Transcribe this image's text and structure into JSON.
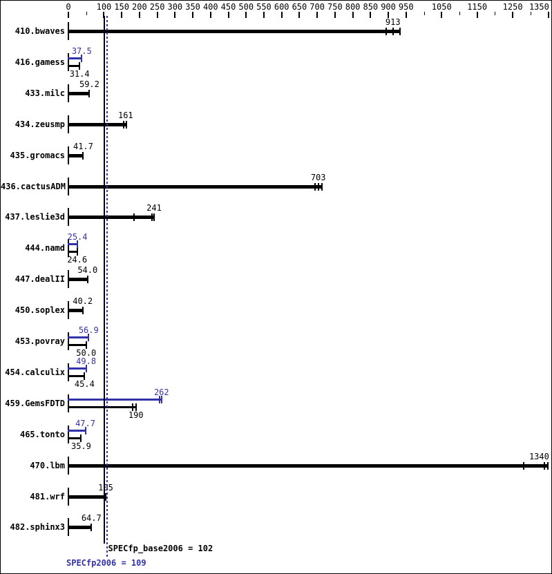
{
  "chart_data": {
    "type": "bar",
    "orientation": "horizontal",
    "title": "",
    "xlabel": "",
    "ylabel": "",
    "grid": false,
    "legend_position": "none",
    "x_axis": {
      "min": 0,
      "max": 1360,
      "labeled_ticks": [
        0,
        100,
        150,
        200,
        250,
        300,
        350,
        400,
        450,
        500,
        550,
        600,
        650,
        700,
        750,
        800,
        850,
        900,
        950,
        1050,
        1150,
        1250,
        1350
      ],
      "minor_ticks": [
        50,
        1000,
        1100,
        1200,
        1300
      ]
    },
    "series_colors": {
      "base": "#000000",
      "peak": "#3232a8"
    },
    "benchmarks": [
      {
        "name": "410.bwaves",
        "peak": null,
        "base": {
          "value": 913,
          "label": "913",
          "run_ticks": [
            894,
            914,
            932
          ]
        }
      },
      {
        "name": "416.gamess",
        "peak": {
          "value": 37.5,
          "label": "37.5",
          "run_ticks": [
            37.5
          ]
        },
        "base": {
          "value": 31.4,
          "label": "31.4",
          "run_ticks": [
            31.4
          ]
        }
      },
      {
        "name": "433.milc",
        "peak": null,
        "base": {
          "value": 59.2,
          "label": "59.2",
          "run_ticks": [
            59.2
          ]
        }
      },
      {
        "name": "434.zeusmp",
        "peak": null,
        "base": {
          "value": 161,
          "label": "161",
          "run_ticks": [
            155,
            163
          ]
        }
      },
      {
        "name": "435.gromacs",
        "peak": null,
        "base": {
          "value": 41.7,
          "label": "41.7",
          "run_ticks": [
            41.7
          ]
        }
      },
      {
        "name": "436.cactusADM",
        "peak": null,
        "base": {
          "value": 703,
          "label": "703",
          "run_ticks": [
            694,
            703,
            713
          ]
        }
      },
      {
        "name": "437.leslie3d",
        "peak": null,
        "base": {
          "value": 241,
          "label": "241",
          "run_ticks": [
            185,
            236,
            241
          ]
        }
      },
      {
        "name": "444.namd",
        "peak": {
          "value": 25.4,
          "label": "25.4",
          "run_ticks": [
            25.4
          ]
        },
        "base": {
          "value": 24.6,
          "label": "24.6",
          "run_ticks": [
            24.6
          ]
        }
      },
      {
        "name": "447.dealII",
        "peak": null,
        "base": {
          "value": 54.0,
          "label": "54.0",
          "run_ticks": [
            54.0
          ]
        }
      },
      {
        "name": "450.soplex",
        "peak": null,
        "base": {
          "value": 40.2,
          "label": "40.2",
          "run_ticks": [
            40.2
          ]
        }
      },
      {
        "name": "453.povray",
        "peak": {
          "value": 56.9,
          "label": "56.9",
          "run_ticks": [
            56.9
          ]
        },
        "base": {
          "value": 50.0,
          "label": "50.0",
          "run_ticks": [
            50.0
          ]
        }
      },
      {
        "name": "454.calculix",
        "peak": {
          "value": 49.8,
          "label": "49.8",
          "run_ticks": [
            49.8
          ]
        },
        "base": {
          "value": 45.4,
          "label": "45.4",
          "run_ticks": [
            45.4
          ]
        }
      },
      {
        "name": "459.GemsFDTD",
        "peak": {
          "value": 262,
          "label": "262",
          "run_ticks": [
            257,
            262
          ]
        },
        "base": {
          "value": 190,
          "label": "190",
          "run_ticks": [
            181,
            190
          ]
        }
      },
      {
        "name": "465.tonto",
        "peak": {
          "value": 47.7,
          "label": "47.7",
          "run_ticks": [
            47.7
          ]
        },
        "base": {
          "value": 35.9,
          "label": "35.9",
          "run_ticks": [
            35.9
          ]
        }
      },
      {
        "name": "470.lbm",
        "peak": null,
        "base": {
          "value": 1340,
          "label": "1340",
          "run_ticks": [
            1281,
            1339,
            1349
          ]
        }
      },
      {
        "name": "481.wrf",
        "peak": null,
        "base": {
          "value": 105,
          "label": "105",
          "run_ticks": [
            105
          ]
        }
      },
      {
        "name": "482.sphinx3",
        "peak": null,
        "base": {
          "value": 64.7,
          "label": "64.7",
          "run_ticks": [
            64.7
          ]
        }
      }
    ],
    "reference_lines": [
      {
        "name": "base-mean",
        "value": 102,
        "color": "#000000",
        "style": "solid"
      },
      {
        "name": "peak-mean",
        "value": 109,
        "color": "#3232a8",
        "style": "dotted"
      }
    ],
    "footer": {
      "base_label": "SPECfp_base2006 = 102",
      "peak_label": "SPECfp2006 = 109"
    }
  }
}
